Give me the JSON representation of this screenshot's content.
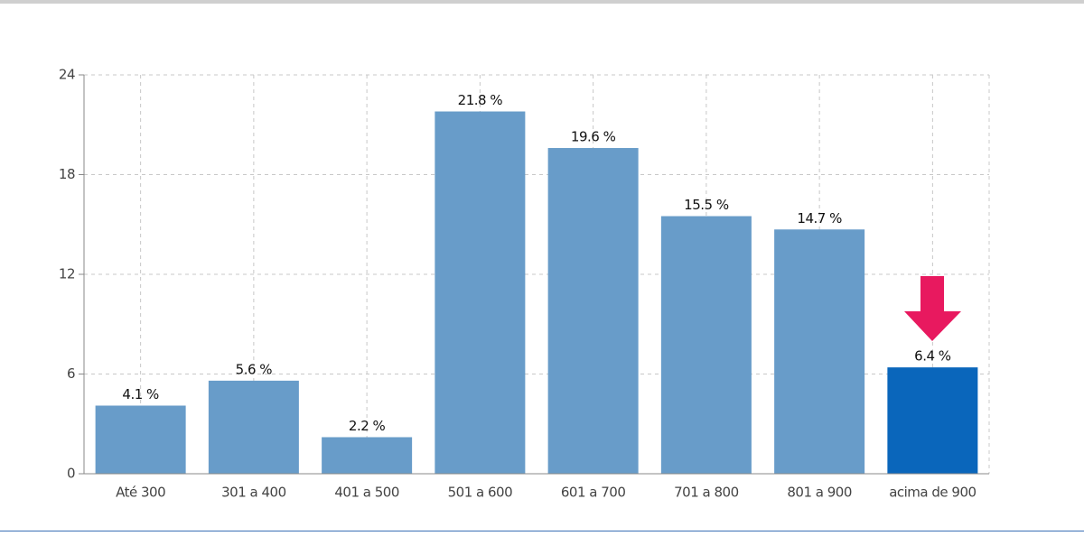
{
  "chart_data": {
    "type": "bar",
    "categories": [
      "Até 300",
      "301 a 400",
      "401 a 500",
      "501 a 600",
      "601 a 700",
      "701 a 800",
      "801 a 900",
      "acima de 900"
    ],
    "values": [
      4.1,
      5.6,
      2.2,
      21.8,
      19.6,
      15.5,
      14.7,
      6.4
    ],
    "value_labels": [
      "4.1 %",
      "5.6 %",
      "2.2 %",
      "21.8 %",
      "19.6 %",
      "15.5 %",
      "14.7 %",
      "6.4 %"
    ],
    "colors": [
      "#689cc9",
      "#689cc9",
      "#689cc9",
      "#689cc9",
      "#689cc9",
      "#689cc9",
      "#689cc9",
      "#0a66bb"
    ],
    "ylim": [
      0,
      24
    ],
    "yticks": [
      0,
      6,
      12,
      18,
      24
    ],
    "grid": true
  }
}
